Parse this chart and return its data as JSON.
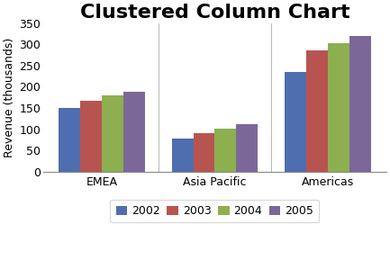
{
  "title": "Clustered Column Chart",
  "categories": [
    "EMEA",
    "Asia Pacific",
    "Americas"
  ],
  "years": [
    "2002",
    "2003",
    "2004",
    "2005"
  ],
  "values": {
    "2002": [
      150,
      78,
      235
    ],
    "2003": [
      168,
      90,
      285
    ],
    "2004": [
      179,
      101,
      303
    ],
    "2005": [
      188,
      112,
      320
    ]
  },
  "colors": {
    "2002": "#4F6EAF",
    "2003": "#B85450",
    "2004": "#8DAF50",
    "2005": "#7B6899"
  },
  "ylabel": "Revenue (thousands)",
  "ylim": [
    0,
    350
  ],
  "yticks": [
    0,
    50,
    100,
    150,
    200,
    250,
    300,
    350
  ],
  "background_color": "#FFFFFF",
  "plot_background": "#FFFFFF",
  "title_fontsize": 16,
  "axis_fontsize": 9,
  "tick_fontsize": 9,
  "legend_fontsize": 9,
  "bar_width": 0.19
}
